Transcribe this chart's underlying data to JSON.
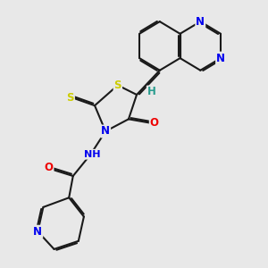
{
  "bg_color": "#e8e8e8",
  "bond_color": "#1a1a1a",
  "bond_width": 1.5,
  "dbo": 0.055,
  "atom_colors": {
    "N": "#0000ee",
    "O": "#ee0000",
    "S": "#cccc00",
    "H_color": "#2a9d8f",
    "C": "#1a1a1a"
  },
  "font_size": 8.5,
  "figsize": [
    3.0,
    3.0
  ],
  "dpi": 100
}
